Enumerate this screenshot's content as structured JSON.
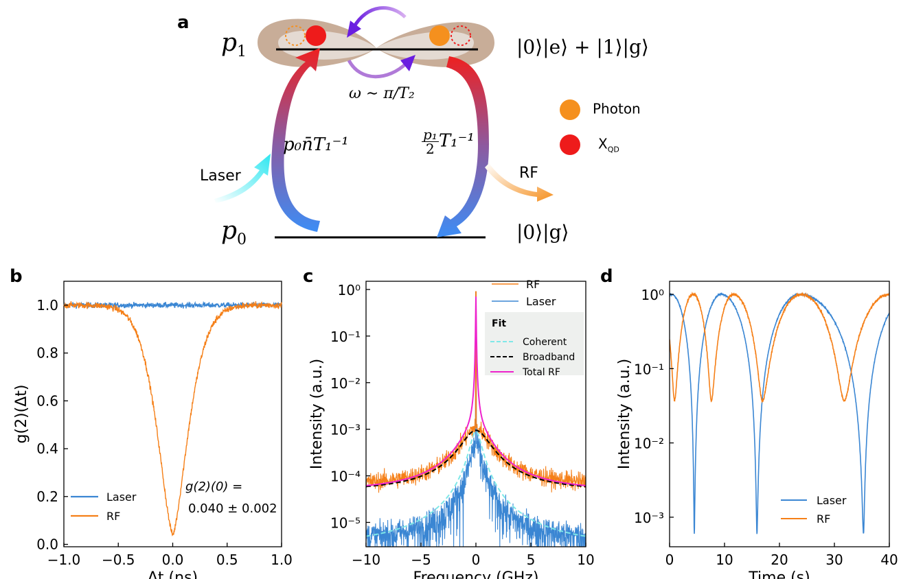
{
  "panels": {
    "a": "a",
    "b": "b",
    "c": "c",
    "d": "d"
  },
  "diagram": {
    "level_top": "p",
    "level_top_sub": "1",
    "level_bottom": "p",
    "level_bottom_sub": "0",
    "state_top": "|0⟩|e⟩ + |1⟩|g⟩",
    "state_bottom": "|0⟩|g⟩",
    "omega_label": "ω ∼ π/T₂",
    "rate_up": "p₀n̄T₁⁻¹",
    "rate_down_num": "p₁",
    "rate_down_den": "2",
    "rate_down_tail": "T₁⁻¹",
    "laser_label": "Laser",
    "rf_label": "RF",
    "legend_photon": "Photon",
    "legend_xqd": "X",
    "legend_xqd_sub": "QD",
    "colors": {
      "photon": "#f5901e",
      "xqd": "#ee1b1b",
      "lobe": "#c4ab96",
      "laser": "#3fe6f0",
      "rf": "#f5a040"
    }
  },
  "chart_data": [
    {
      "id": "b",
      "type": "line",
      "xlabel": "Δt (ns)",
      "ylabel": "g(2)(Δt)",
      "xlim": [
        -1.0,
        1.0
      ],
      "ylim": [
        -0.01,
        1.1
      ],
      "xticks": [
        "−1.0",
        "−0.5",
        "0.0",
        "0.5",
        "1.0"
      ],
      "yticks": [
        "0.0",
        "0.2",
        "0.4",
        "0.6",
        "0.8",
        "1.0"
      ],
      "series": [
        {
          "name": "Laser",
          "color": "#3a86d3",
          "baseline": 1.0,
          "dip_min": 1.0,
          "dip_width_ns": 0.0
        },
        {
          "name": "RF",
          "color": "#f57f17",
          "baseline": 1.0,
          "dip_min": 0.04,
          "dip_width_ns": 0.22
        }
      ],
      "annotation_line1": "g(2)(0) =",
      "annotation_line2": "0.040 ± 0.002"
    },
    {
      "id": "c",
      "type": "line",
      "yscale": "log",
      "xlabel": "Frequency (GHz)",
      "ylabel": "Intensity (a.u.)",
      "xlim": [
        -10,
        10
      ],
      "ylim": [
        3e-06,
        1.5
      ],
      "xticks": [
        "−10",
        "−5",
        "0",
        "5",
        "10"
      ],
      "yticks": [
        "10⁰",
        "10⁻¹",
        "10⁻²",
        "10⁻³",
        "10⁻⁴",
        "10⁻⁵"
      ],
      "series": [
        {
          "name": "RF",
          "color": "#f57f17",
          "peak": 0.9,
          "broad_peak": 0.001,
          "floor": 6e-05
        },
        {
          "name": "Laser",
          "color": "#3a86d3",
          "peak": 0.9,
          "broad_peak": 0.0005,
          "floor": 4e-06
        }
      ],
      "fit_title": "Fit",
      "fit": [
        {
          "name": "Coherent",
          "color": "#7ee8e8",
          "style": "dashed"
        },
        {
          "name": "Broadband",
          "color": "#000000",
          "style": "dashed"
        },
        {
          "name": "Total RF",
          "color": "#ee22cc",
          "style": "solid"
        }
      ]
    },
    {
      "id": "d",
      "type": "line",
      "yscale": "log",
      "xlabel": "Time (s)",
      "ylabel": "Intensity (a.u.)",
      "xlim": [
        0,
        40
      ],
      "ylim": [
        0.0004,
        1.5
      ],
      "xticks": [
        "0",
        "10",
        "20",
        "30",
        "40"
      ],
      "yticks": [
        "10⁰",
        "10⁻¹",
        "10⁻²",
        "10⁻³"
      ],
      "series": [
        {
          "name": "Laser",
          "color": "#3a86d3",
          "minima_s": [
            4.5,
            15.9,
            35.3
          ],
          "min_value": 0.0006,
          "peaks_s": [
            0.3,
            9.4,
            23.7
          ]
        },
        {
          "name": "RF",
          "color": "#f57f17",
          "minima_s": [
            0.9,
            7.6,
            16.9,
            31.8
          ],
          "min_value": 0.037,
          "peaks_s": [
            4.3,
            11.6,
            24.0,
            40
          ]
        }
      ]
    }
  ]
}
